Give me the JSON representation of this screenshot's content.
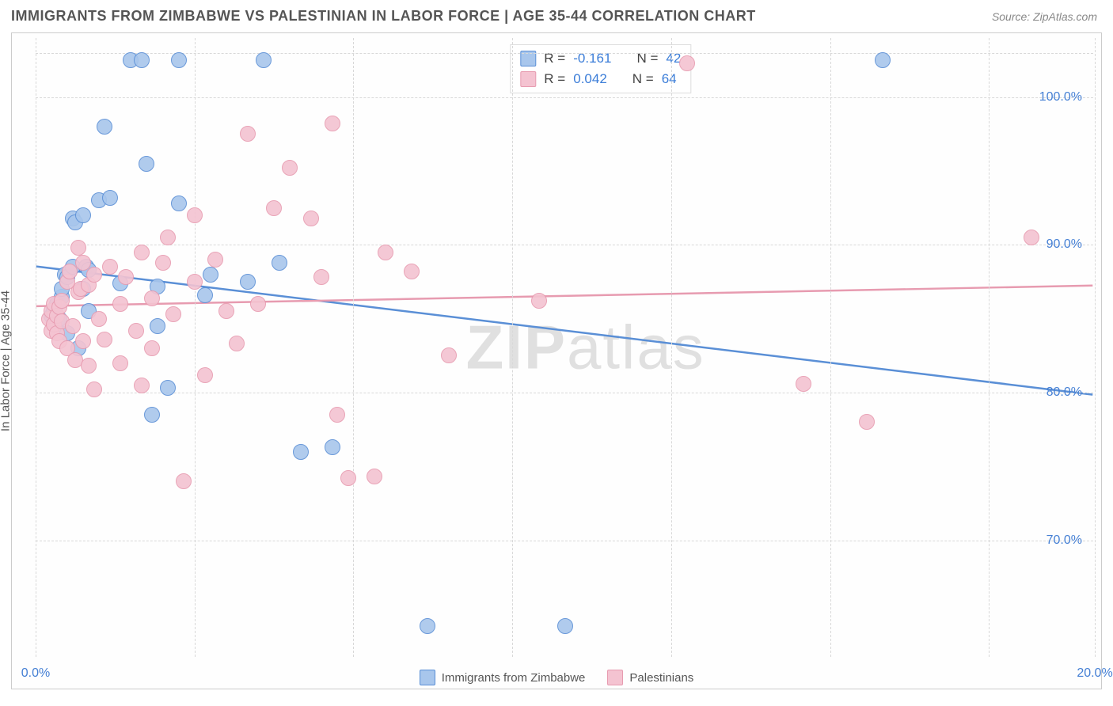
{
  "header": {
    "title": "IMMIGRANTS FROM ZIMBABWE VS PALESTINIAN IN LABOR FORCE | AGE 35-44 CORRELATION CHART",
    "source": "Source: ZipAtlas.com"
  },
  "chart": {
    "type": "scatter",
    "ylabel": "In Labor Force | Age 35-44",
    "xlim": [
      0,
      20
    ],
    "ylim": [
      62,
      104
    ],
    "xticks": [
      {
        "pos": 0.0,
        "label": "0.0%"
      },
      {
        "pos": 20.0,
        "label": "20.0%"
      }
    ],
    "xgrid_positions": [
      0,
      3.0,
      6.0,
      9.0,
      12.0,
      15.0,
      18.0,
      20.0
    ],
    "yticks": [
      {
        "pos": 70,
        "label": "70.0%"
      },
      {
        "pos": 80,
        "label": "80.0%"
      },
      {
        "pos": 90,
        "label": "90.0%"
      },
      {
        "pos": 100,
        "label": "100.0%"
      }
    ],
    "ygrid_positions": [
      70,
      80,
      90,
      100,
      103
    ],
    "background_color": "#ffffff",
    "grid_color": "#d8d8d8",
    "border_color": "#cccccc",
    "tick_label_color": "#447fd4",
    "axis_label_color": "#555555",
    "marker_radius": 10,
    "marker_border_width": 1.5,
    "marker_fill_opacity": 0.35,
    "series": [
      {
        "id": "zimbabwe",
        "label": "Immigrants from Zimbabwe",
        "color_border": "#5a8fd6",
        "color_fill": "#a8c6ec",
        "R": "-0.161",
        "N": "42",
        "regression": {
          "y_at_x0": 88.5,
          "y_at_xmax": 79.8,
          "width": 2.5
        },
        "points": [
          [
            0.3,
            85.2
          ],
          [
            0.35,
            85.6
          ],
          [
            0.4,
            86.0
          ],
          [
            0.4,
            84.8
          ],
          [
            0.45,
            85.0
          ],
          [
            0.5,
            86.5
          ],
          [
            0.5,
            87.0
          ],
          [
            0.55,
            88.0
          ],
          [
            0.6,
            87.8
          ],
          [
            0.6,
            84.0
          ],
          [
            0.7,
            88.5
          ],
          [
            0.7,
            91.8
          ],
          [
            0.75,
            91.5
          ],
          [
            0.9,
            92.0
          ],
          [
            0.9,
            87.0
          ],
          [
            0.95,
            88.5
          ],
          [
            1.0,
            85.5
          ],
          [
            1.0,
            88.3
          ],
          [
            1.2,
            93.0
          ],
          [
            1.3,
            98.0
          ],
          [
            1.4,
            93.2
          ],
          [
            1.6,
            87.4
          ],
          [
            1.8,
            102.5
          ],
          [
            2.0,
            102.5
          ],
          [
            2.1,
            95.5
          ],
          [
            2.2,
            78.5
          ],
          [
            2.3,
            84.5
          ],
          [
            2.3,
            87.2
          ],
          [
            2.5,
            80.3
          ],
          [
            2.7,
            92.8
          ],
          [
            2.7,
            102.5
          ],
          [
            3.2,
            86.6
          ],
          [
            3.3,
            88.0
          ],
          [
            4.0,
            87.5
          ],
          [
            4.3,
            102.5
          ],
          [
            4.6,
            88.8
          ],
          [
            5.0,
            76.0
          ],
          [
            5.6,
            76.3
          ],
          [
            7.4,
            64.2
          ],
          [
            10.0,
            64.2
          ],
          [
            16.0,
            102.5
          ],
          [
            0.8,
            83.0
          ]
        ]
      },
      {
        "id": "palestinians",
        "label": "Palestinians",
        "color_border": "#e79bb0",
        "color_fill": "#f4c3d1",
        "R": "0.042",
        "N": "64",
        "regression": {
          "y_at_x0": 85.8,
          "y_at_xmax": 87.2,
          "width": 2.5
        },
        "points": [
          [
            0.25,
            85.0
          ],
          [
            0.3,
            84.2
          ],
          [
            0.3,
            85.5
          ],
          [
            0.35,
            84.6
          ],
          [
            0.35,
            86.0
          ],
          [
            0.4,
            84.0
          ],
          [
            0.4,
            85.2
          ],
          [
            0.45,
            83.5
          ],
          [
            0.45,
            85.8
          ],
          [
            0.5,
            84.8
          ],
          [
            0.5,
            86.2
          ],
          [
            0.6,
            83.0
          ],
          [
            0.6,
            87.5
          ],
          [
            0.65,
            88.2
          ],
          [
            0.7,
            84.5
          ],
          [
            0.75,
            82.2
          ],
          [
            0.8,
            86.8
          ],
          [
            0.8,
            89.8
          ],
          [
            0.85,
            87.0
          ],
          [
            0.9,
            83.5
          ],
          [
            0.9,
            88.8
          ],
          [
            1.0,
            81.8
          ],
          [
            1.0,
            87.3
          ],
          [
            1.1,
            80.2
          ],
          [
            1.1,
            88.0
          ],
          [
            1.2,
            85.0
          ],
          [
            1.3,
            83.6
          ],
          [
            1.4,
            88.5
          ],
          [
            1.6,
            82.0
          ],
          [
            1.6,
            86.0
          ],
          [
            1.7,
            87.8
          ],
          [
            1.9,
            84.2
          ],
          [
            2.0,
            89.5
          ],
          [
            2.0,
            80.5
          ],
          [
            2.2,
            86.4
          ],
          [
            2.2,
            83.0
          ],
          [
            2.4,
            88.8
          ],
          [
            2.5,
            90.5
          ],
          [
            2.6,
            85.3
          ],
          [
            2.8,
            74.0
          ],
          [
            3.0,
            92.0
          ],
          [
            3.0,
            87.5
          ],
          [
            3.2,
            81.2
          ],
          [
            3.4,
            89.0
          ],
          [
            3.8,
            83.3
          ],
          [
            4.0,
            97.5
          ],
          [
            4.2,
            86.0
          ],
          [
            4.5,
            92.5
          ],
          [
            4.8,
            95.2
          ],
          [
            5.2,
            91.8
          ],
          [
            5.4,
            87.8
          ],
          [
            5.6,
            98.2
          ],
          [
            5.7,
            78.5
          ],
          [
            5.9,
            74.2
          ],
          [
            6.4,
            74.3
          ],
          [
            6.6,
            89.5
          ],
          [
            7.1,
            88.2
          ],
          [
            7.8,
            82.5
          ],
          [
            9.5,
            86.2
          ],
          [
            12.3,
            102.3
          ],
          [
            14.5,
            80.6
          ],
          [
            15.7,
            78.0
          ],
          [
            18.8,
            90.5
          ],
          [
            3.6,
            85.5
          ]
        ]
      }
    ],
    "legend_box": {
      "R_label": "R =",
      "N_label": "N =",
      "value_color": "#3b7dd8",
      "text_color": "#444444",
      "border_color": "#dddddd"
    },
    "bottom_legend_text_color": "#555555",
    "watermark": {
      "text_bold": "ZIP",
      "text_rest": "atlas",
      "color": "#c9c9c9"
    }
  }
}
